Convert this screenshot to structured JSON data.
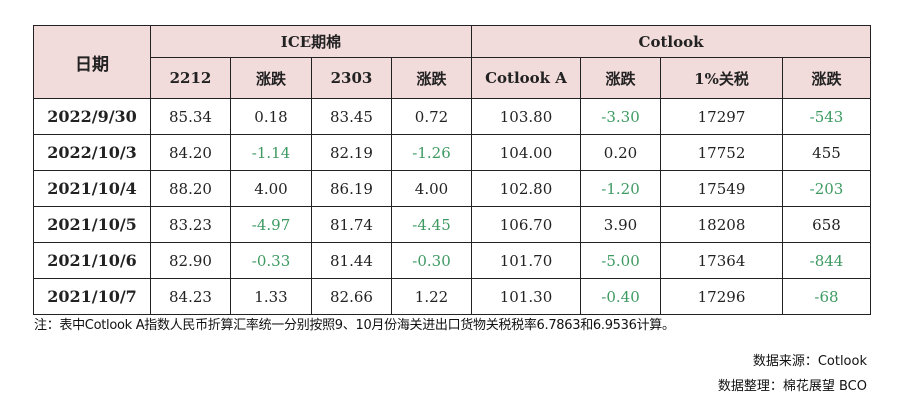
{
  "header": {
    "date_label": "日期",
    "ice_group": "ICE期棉",
    "cotlook_group": "Cotlook",
    "columns": [
      "2212",
      "涨跌",
      "2303",
      "涨跌",
      "Cotlook A",
      "涨跌",
      "1%关税",
      "涨跌"
    ]
  },
  "rows": [
    {
      "date": "2022/9/30",
      "cells": [
        "85.34",
        "0.18",
        "83.45",
        "0.72",
        "103.80",
        "-3.30",
        "17297",
        "-543"
      ]
    },
    {
      "date": "2022/10/3",
      "cells": [
        "84.20",
        "-1.14",
        "82.19",
        "-1.26",
        "104.00",
        "0.20",
        "17752",
        "455"
      ]
    },
    {
      "date": "2021/10/4",
      "cells": [
        "88.20",
        "4.00",
        "86.19",
        "4.00",
        "102.80",
        "-1.20",
        "17549",
        "-203"
      ]
    },
    {
      "date": "2021/10/5",
      "cells": [
        "83.23",
        "-4.97",
        "81.74",
        "-4.45",
        "106.70",
        "3.90",
        "18208",
        "658"
      ]
    },
    {
      "date": "2021/10/6",
      "cells": [
        "82.90",
        "-0.33",
        "81.44",
        "-0.30",
        "101.70",
        "-5.00",
        "17364",
        "-844"
      ]
    },
    {
      "date": "2021/10/7",
      "cells": [
        "84.23",
        "1.33",
        "82.66",
        "1.22",
        "101.30",
        "-0.40",
        "17296",
        "-68"
      ]
    }
  ],
  "note": "注：表中Cotlook A指数人民币折算汇率统一分别按照9、10月份海关进出口货物关税税率6.7863和6.9536计算。",
  "source": "数据来源：Cotlook",
  "compiled_by": "数据整理：棉花展望 BCO",
  "colors": {
    "header_bg": "#f2dcdb",
    "negative": "#3e9a62"
  }
}
